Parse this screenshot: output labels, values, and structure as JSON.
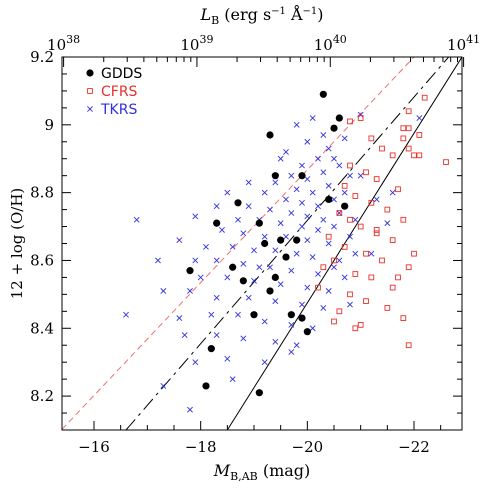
{
  "chart_data": {
    "type": "scatter",
    "xlabel": {
      "main": "M",
      "sub": "B,AB",
      "unit": " (mag)"
    },
    "ylabel": "12 + log (O/H)",
    "top_xlabel": {
      "main": "L",
      "sub": "B",
      "unit_a": " (erg s",
      "exp1": "−1",
      "unit_b": " Å",
      "exp2": "−1",
      "unit_c": ")"
    },
    "xlim": [
      -15.4,
      -22.9
    ],
    "ylim": [
      8.1,
      9.2
    ],
    "x_ticks": [
      {
        "value": -16,
        "label": "−16"
      },
      {
        "value": -18,
        "label": "−18"
      },
      {
        "value": -20,
        "label": "−20"
      },
      {
        "value": -22,
        "label": "−22"
      }
    ],
    "y_ticks": [
      {
        "value": 8.2,
        "label": "8.2"
      },
      {
        "value": 8.4,
        "label": "8.4"
      },
      {
        "value": 8.6,
        "label": "8.6"
      },
      {
        "value": 8.8,
        "label": "8.8"
      },
      {
        "value": 9.0,
        "label": "9"
      },
      {
        "value": 9.2,
        "label": "9.2"
      }
    ],
    "top_ticks": [
      {
        "mag": -15.43,
        "base": "10",
        "exp": "38"
      },
      {
        "mag": -17.93,
        "base": "10",
        "exp": "39"
      },
      {
        "mag": -20.43,
        "base": "10",
        "exp": "40"
      },
      {
        "mag": -22.93,
        "base": "10",
        "exp": "41"
      }
    ],
    "legend_position": "top-left",
    "series": [
      {
        "name": "GDDS",
        "marker": "filled-circle",
        "color": "#000000",
        "points": [
          [
            -20.3,
            9.09
          ],
          [
            -20.5,
            8.99
          ],
          [
            -20.6,
            9.02
          ],
          [
            -19.3,
            8.97
          ],
          [
            -19.4,
            8.85
          ],
          [
            -19.9,
            8.85
          ],
          [
            -18.7,
            8.77
          ],
          [
            -18.3,
            8.71
          ],
          [
            -20.7,
            8.76
          ],
          [
            -20.4,
            8.78
          ],
          [
            -19.1,
            8.71
          ],
          [
            -19.2,
            8.65
          ],
          [
            -19.5,
            8.66
          ],
          [
            -19.8,
            8.66
          ],
          [
            -17.8,
            8.57
          ],
          [
            -18.6,
            8.58
          ],
          [
            -19.6,
            8.61
          ],
          [
            -18.8,
            8.54
          ],
          [
            -19.4,
            8.55
          ],
          [
            -19.3,
            8.51
          ],
          [
            -19.0,
            8.44
          ],
          [
            -19.7,
            8.44
          ],
          [
            -19.9,
            8.43
          ],
          [
            -20.0,
            8.39
          ],
          [
            -18.2,
            8.34
          ],
          [
            -18.1,
            8.23
          ],
          [
            -19.1,
            8.21
          ]
        ]
      },
      {
        "name": "CFRS",
        "marker": "open-square",
        "color": "#e8302a",
        "points": [
          [
            -22.2,
            9.08
          ],
          [
            -21.9,
            9.04
          ],
          [
            -21.9,
            8.93
          ],
          [
            -21.8,
            8.96
          ],
          [
            -21.9,
            8.99
          ],
          [
            -22.0,
            8.91
          ],
          [
            -22.1,
            8.91
          ],
          [
            -22.1,
            8.97
          ],
          [
            -22.6,
            8.89
          ],
          [
            -21.8,
            8.99
          ],
          [
            -21.0,
            9.02
          ],
          [
            -20.8,
            9.01
          ],
          [
            -21.2,
            8.96
          ],
          [
            -21.4,
            8.93
          ],
          [
            -21.6,
            8.91
          ],
          [
            -20.8,
            8.88
          ],
          [
            -21.1,
            8.86
          ],
          [
            -21.3,
            8.84
          ],
          [
            -21.7,
            8.81
          ],
          [
            -20.7,
            8.82
          ],
          [
            -20.9,
            8.79
          ],
          [
            -21.2,
            8.77
          ],
          [
            -21.5,
            8.75
          ],
          [
            -21.8,
            8.72
          ],
          [
            -20.6,
            8.74
          ],
          [
            -20.8,
            8.72
          ],
          [
            -21.0,
            8.7
          ],
          [
            -21.3,
            8.69
          ],
          [
            -21.6,
            8.66
          ],
          [
            -20.4,
            8.67
          ],
          [
            -20.7,
            8.64
          ],
          [
            -21.1,
            8.62
          ],
          [
            -21.4,
            8.6
          ],
          [
            -21.9,
            8.58
          ],
          [
            -20.5,
            8.6
          ],
          [
            -20.9,
            8.56
          ],
          [
            -21.2,
            8.55
          ],
          [
            -21.6,
            8.52
          ],
          [
            -20.3,
            8.58
          ],
          [
            -20.8,
            8.5
          ],
          [
            -21.1,
            8.48
          ],
          [
            -21.5,
            8.46
          ],
          [
            -20.6,
            8.45
          ],
          [
            -21.0,
            8.41
          ],
          [
            -21.8,
            8.43
          ],
          [
            -20.2,
            8.52
          ],
          [
            -20.5,
            8.42
          ],
          [
            -20.9,
            8.4
          ],
          [
            -21.9,
            8.35
          ],
          [
            -21.3,
            8.68
          ],
          [
            -22.0,
            8.62
          ],
          [
            -21.7,
            8.55
          ]
        ]
      },
      {
        "name": "TKRS",
        "marker": "cross",
        "color": "#3030e0",
        "points": [
          [
            -19.8,
            9.0
          ],
          [
            -20.1,
            9.02
          ],
          [
            -20.3,
            8.97
          ],
          [
            -20.0,
            8.95
          ],
          [
            -20.4,
            8.93
          ],
          [
            -19.6,
            8.92
          ],
          [
            -20.2,
            8.9
          ],
          [
            -19.9,
            8.88
          ],
          [
            -20.5,
            8.9
          ],
          [
            -20.7,
            8.96
          ],
          [
            -21.0,
            9.03
          ],
          [
            -20.6,
            8.88
          ],
          [
            -19.7,
            8.85
          ],
          [
            -20.0,
            8.84
          ],
          [
            -20.3,
            8.86
          ],
          [
            -20.8,
            8.85
          ],
          [
            -19.4,
            8.83
          ],
          [
            -19.8,
            8.81
          ],
          [
            -20.1,
            8.8
          ],
          [
            -20.4,
            8.82
          ],
          [
            -20.7,
            8.8
          ],
          [
            -19.2,
            8.8
          ],
          [
            -19.6,
            8.78
          ],
          [
            -19.9,
            8.77
          ],
          [
            -20.2,
            8.76
          ],
          [
            -20.5,
            8.78
          ],
          [
            -18.5,
            8.8
          ],
          [
            -18.9,
            8.76
          ],
          [
            -19.3,
            8.75
          ],
          [
            -19.7,
            8.74
          ],
          [
            -20.0,
            8.73
          ],
          [
            -20.3,
            8.72
          ],
          [
            -20.6,
            8.74
          ],
          [
            -18.3,
            8.76
          ],
          [
            -18.7,
            8.72
          ],
          [
            -19.1,
            8.72
          ],
          [
            -19.5,
            8.71
          ],
          [
            -19.9,
            8.7
          ],
          [
            -20.2,
            8.69
          ],
          [
            -20.5,
            8.7
          ],
          [
            -20.9,
            8.72
          ],
          [
            -17.9,
            8.73
          ],
          [
            -18.4,
            8.69
          ],
          [
            -18.8,
            8.68
          ],
          [
            -19.2,
            8.67
          ],
          [
            -19.6,
            8.67
          ],
          [
            -20.0,
            8.66
          ],
          [
            -20.4,
            8.65
          ],
          [
            -20.8,
            8.67
          ],
          [
            -16.8,
            8.72
          ],
          [
            -17.6,
            8.66
          ],
          [
            -18.1,
            8.64
          ],
          [
            -18.6,
            8.64
          ],
          [
            -19.0,
            8.63
          ],
          [
            -19.4,
            8.63
          ],
          [
            -19.8,
            8.62
          ],
          [
            -20.1,
            8.61
          ],
          [
            -20.6,
            8.6
          ],
          [
            -21.2,
            8.62
          ],
          [
            -17.2,
            8.6
          ],
          [
            -17.9,
            8.6
          ],
          [
            -18.3,
            8.6
          ],
          [
            -18.8,
            8.59
          ],
          [
            -19.3,
            8.58
          ],
          [
            -19.7,
            8.57
          ],
          [
            -20.2,
            8.56
          ],
          [
            -20.7,
            8.55
          ],
          [
            -18.0,
            8.55
          ],
          [
            -18.5,
            8.55
          ],
          [
            -19.0,
            8.54
          ],
          [
            -19.5,
            8.53
          ],
          [
            -20.0,
            8.52
          ],
          [
            -20.4,
            8.51
          ],
          [
            -16.6,
            8.44
          ],
          [
            -17.3,
            8.51
          ],
          [
            -17.8,
            8.51
          ],
          [
            -18.3,
            8.49
          ],
          [
            -18.9,
            8.49
          ],
          [
            -19.4,
            8.48
          ],
          [
            -19.9,
            8.47
          ],
          [
            -20.3,
            8.46
          ],
          [
            -20.8,
            8.47
          ],
          [
            -17.6,
            8.43
          ],
          [
            -18.2,
            8.44
          ],
          [
            -18.7,
            8.44
          ],
          [
            -19.2,
            8.42
          ],
          [
            -19.7,
            8.41
          ],
          [
            -20.1,
            8.4
          ],
          [
            -17.7,
            8.38
          ],
          [
            -18.3,
            8.38
          ],
          [
            -18.8,
            8.37
          ],
          [
            -19.4,
            8.36
          ],
          [
            -19.8,
            8.35
          ],
          [
            -17.9,
            8.3
          ],
          [
            -18.5,
            8.31
          ],
          [
            -19.2,
            8.3
          ],
          [
            -17.3,
            8.23
          ],
          [
            -18.6,
            8.25
          ],
          [
            -17.8,
            8.16
          ],
          [
            -19.7,
            8.33
          ],
          [
            -21.0,
            8.85
          ],
          [
            -21.3,
            8.78
          ],
          [
            -20.9,
            8.62
          ],
          [
            -22.1,
            9.02
          ],
          [
            -19.5,
            8.9
          ],
          [
            -18.9,
            8.83
          ],
          [
            -21.5,
            8.71
          ],
          [
            -19.1,
            8.58
          ],
          [
            -20.5,
            8.58
          ],
          [
            -21.6,
            8.8
          ]
        ]
      }
    ],
    "lines": [
      {
        "style": "dashed",
        "color": "#f07070",
        "from": [
          -15.4,
          8.102
        ],
        "to": [
          -22.0,
          9.2
        ]
      },
      {
        "style": "long-dash",
        "color": "#000000",
        "from": [
          -16.6,
          8.1
        ],
        "to": [
          -22.65,
          9.2
        ]
      },
      {
        "style": "solid",
        "color": "#000000",
        "from": [
          -18.5,
          8.1
        ],
        "to": [
          -22.9,
          9.2
        ]
      }
    ]
  }
}
